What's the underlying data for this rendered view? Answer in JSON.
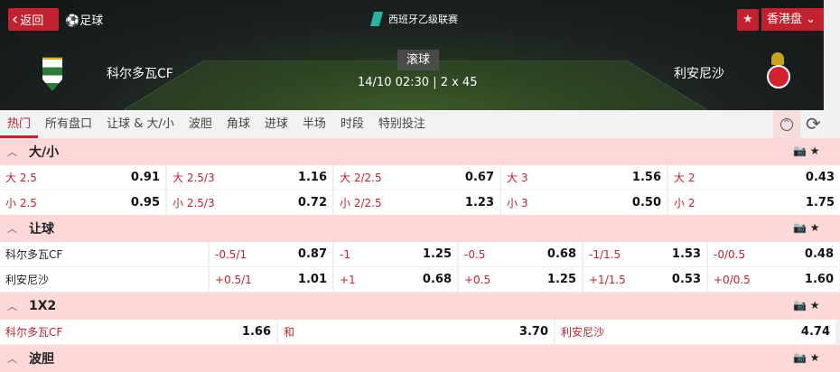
{
  "header": {
    "back_label": "返回",
    "sport": "足球",
    "league": "西班牙乙级联赛",
    "odds_type": "香港盘",
    "status": "滚球",
    "match_time": "14/10 02:30 | 2 x 45",
    "home": "科尔多瓦CF",
    "away": "利安尼沙"
  },
  "tabs": [
    "热门",
    "所有盘口",
    "让球 & 大/小",
    "波胆",
    "角球",
    "进球",
    "半场",
    "时段",
    "特别投注"
  ],
  "over_under": {
    "title": "大/小",
    "rows": [
      [
        [
          "大 2.5",
          "0.91"
        ],
        [
          "大 2.5/3",
          "1.16"
        ],
        [
          "大 2/2.5",
          "0.67"
        ],
        [
          "大 3",
          "1.56"
        ],
        [
          "大 2",
          "0.43"
        ]
      ],
      [
        [
          "小 2.5",
          "0.95"
        ],
        [
          "小 2.5/3",
          "0.72"
        ],
        [
          "小 2/2.5",
          "1.23"
        ],
        [
          "小 3",
          "0.50"
        ],
        [
          "小 2",
          "1.75"
        ]
      ]
    ]
  },
  "handicap": {
    "title": "让球",
    "rows": [
      {
        "team": "科尔多瓦CF",
        "odds": [
          [
            "-0.5/1",
            "0.87"
          ],
          [
            "-1",
            "1.25"
          ],
          [
            "-0.5",
            "0.68"
          ],
          [
            "-1/1.5",
            "1.53"
          ],
          [
            "-0/0.5",
            "0.48"
          ]
        ]
      },
      {
        "team": "利安尼沙",
        "odds": [
          [
            "+0.5/1",
            "1.01"
          ],
          [
            "+1",
            "0.68"
          ],
          [
            "+0.5",
            "1.25"
          ],
          [
            "+1/1.5",
            "0.53"
          ],
          [
            "+0/0.5",
            "1.60"
          ]
        ]
      }
    ]
  },
  "x12": {
    "title": "1X2",
    "cells": [
      [
        "科尔多瓦CF",
        "1.66"
      ],
      [
        "和",
        "3.70"
      ],
      [
        "利安尼沙",
        "4.74"
      ]
    ]
  },
  "correct_score": {
    "title": "波胆"
  },
  "colors": {
    "accent": "#c0232f",
    "section_bg": "#fdd8d8"
  }
}
